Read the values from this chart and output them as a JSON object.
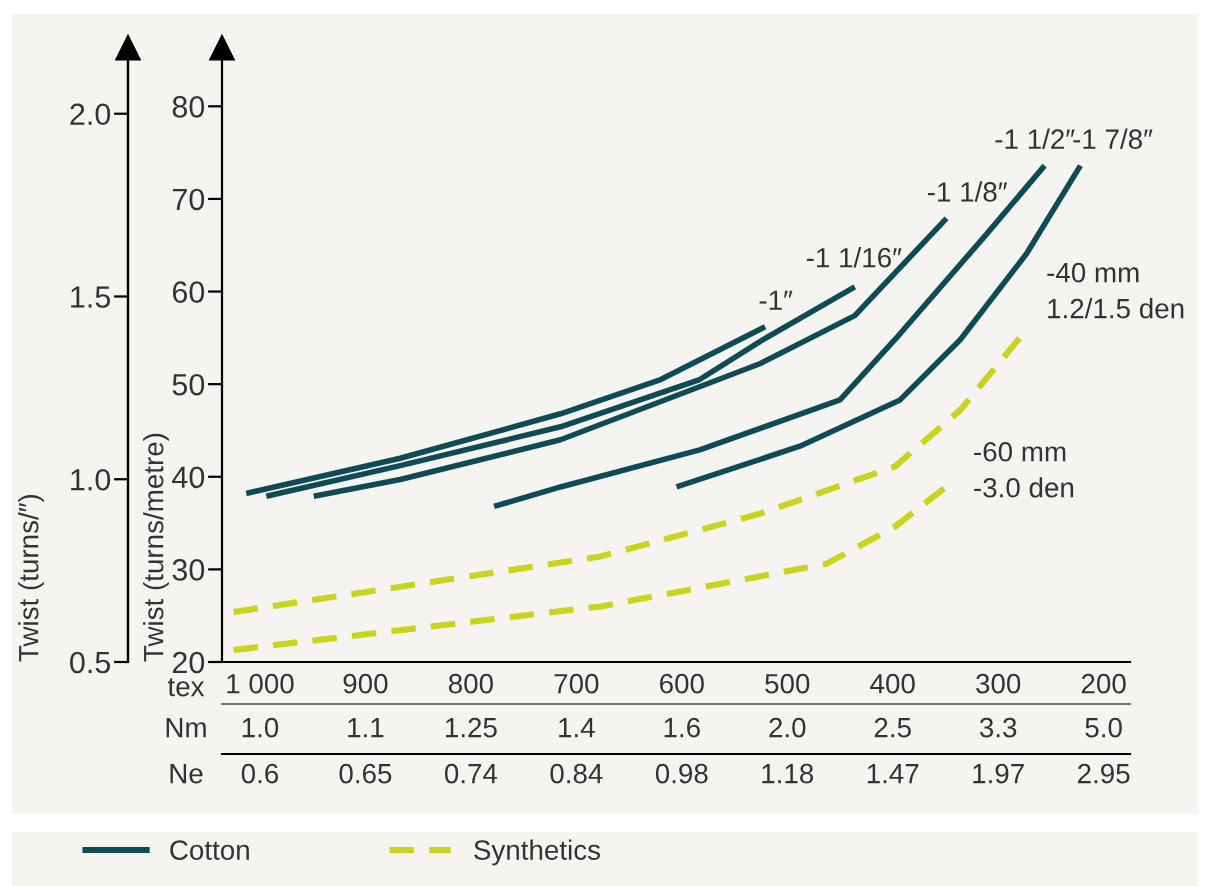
{
  "chart_data": {
    "type": "line",
    "xlabel": "tex",
    "ylabel": "Twist (turns/metre)",
    "y2label": "Twist (turns/″)",
    "xlim": [
      1036,
      175
    ],
    "xticks": [
      {
        "value": 1000,
        "label": "1 000"
      },
      900,
      800,
      700,
      600,
      500,
      400,
      300,
      200
    ],
    "ylim": [
      20,
      85
    ],
    "yticks": [
      20,
      30,
      40,
      50,
      60,
      70,
      80
    ],
    "y2lim": [
      0.5,
      2.147
    ],
    "y2ticks": [
      0.5,
      {
        "value": 1.0,
        "label": "1.0"
      },
      1.5,
      {
        "value": 2.0,
        "label": "2.0"
      }
    ],
    "grid": false,
    "marker": "none",
    "annotations": [
      "Cotton",
      "Synthetics",
      "Nm",
      "1.0",
      "1.1",
      "1.25",
      "1.4",
      "1.6",
      "2.0",
      "2.5",
      "3.3",
      "5.0",
      "Ne",
      "0.6",
      "0.65",
      "0.74",
      "0.84",
      "0.98",
      "1.18",
      "1.47",
      "1.97",
      "2.95"
    ],
    "series": [
      {
        "name": "-1″",
        "color": "#0f4b54",
        "line_style": "solid",
        "x": [
          1013,
          867,
          715,
          620,
          521
        ],
        "values": [
          38.2,
          42.0,
          46.8,
          50.5,
          56.2
        ]
      },
      {
        "name": "-1 1/16″",
        "color": "#0f4b54",
        "line_style": "solid",
        "x": [
          994,
          867,
          715,
          583,
          526,
          436
        ],
        "values": [
          37.9,
          41.2,
          45.4,
          50.5,
          54.6,
          60.5
        ]
      },
      {
        "name": "-1 1/8″",
        "color": "#0f4b54",
        "line_style": "solid",
        "x": [
          949,
          867,
          715,
          526,
          436,
          349
        ],
        "values": [
          37.9,
          39.7,
          44.0,
          52.2,
          57.4,
          67.9
        ]
      },
      {
        "name": "-1 1/2″",
        "color": "#0f4b54",
        "line_style": "solid",
        "x": [
          778,
          715,
          583,
          450,
          398,
          311,
          256
        ],
        "values": [
          36.8,
          38.9,
          42.9,
          48.3,
          54.8,
          66.2,
          73.6
        ]
      },
      {
        "name": "-1 7/8″",
        "color": "#0f4b54",
        "line_style": "solid",
        "x": [
          605,
          488,
          393,
          336,
          273,
          222
        ],
        "values": [
          38.9,
          43.3,
          48.3,
          54.8,
          64.1,
          73.6
        ]
      },
      {
        "name": "-40 mm\n1.2/1.5 den",
        "color": "#c9d41c",
        "line_style": "dashed",
        "x": [
          1025,
          677,
          526,
          398,
          336,
          273
        ],
        "values": [
          25.4,
          31.4,
          36.0,
          41.1,
          47.2,
          55.9
        ]
      },
      {
        "name": "-60 mm\n-3.0 den",
        "color": "#c9d41c",
        "line_style": "dashed",
        "x": [
          1025,
          677,
          463,
          398,
          345
        ],
        "values": [
          21.3,
          26.0,
          30.6,
          34.6,
          39.3
        ]
      }
    ]
  }
}
